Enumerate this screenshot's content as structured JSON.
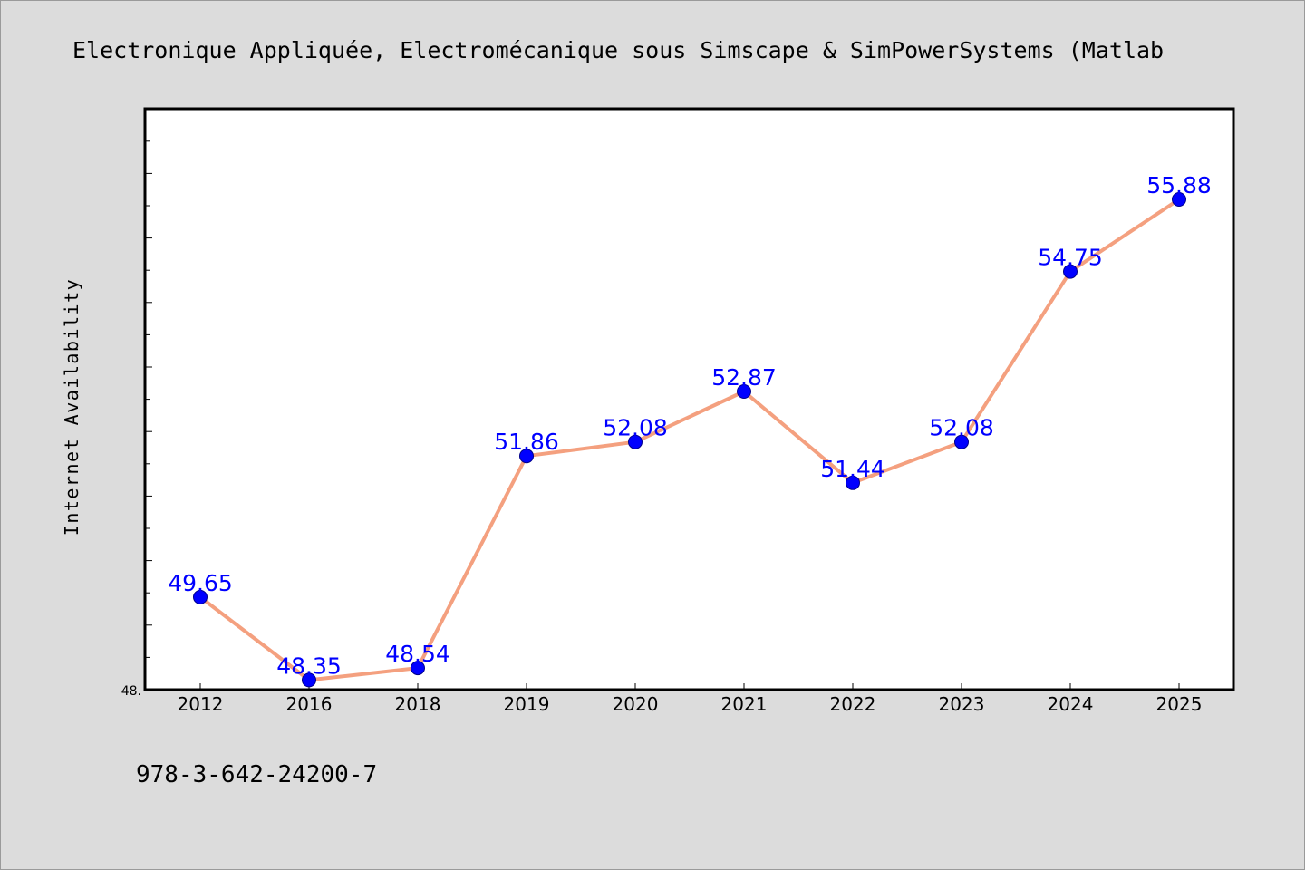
{
  "chart_data": {
    "type": "line",
    "title": "Electronique Appliquée, Electromécanique sous Simscape & SimPowerSystems (Matlab",
    "xlabel": "",
    "ylabel": "Internet Availability",
    "categories": [
      "2012",
      "2016",
      "2018",
      "2019",
      "2020",
      "2021",
      "2022",
      "2023",
      "2024",
      "2025"
    ],
    "series": [
      {
        "values": [
          49.65,
          48.35,
          48.54,
          51.86,
          52.08,
          52.87,
          51.44,
          52.08,
          54.75,
          55.88
        ],
        "labels": [
          "49.65",
          "48.35",
          "48.54",
          "51.86",
          "52.08",
          "52.87",
          "51.44",
          "52.08",
          "54.75",
          "55.88"
        ]
      }
    ],
    "ylim": [
      48.2,
      57.3
    ],
    "y_tick_labels": [
      "48."
    ],
    "grid": false,
    "legend": "none",
    "colors": {
      "line": "#f4a07f",
      "marker": "#0000ff",
      "marker_edge": "#00008b",
      "data_label": "#0000ff",
      "background": "#dcdcdc",
      "plot_area": "#ffffff"
    }
  },
  "footer": {
    "text": "978-3-642-24200-7"
  }
}
